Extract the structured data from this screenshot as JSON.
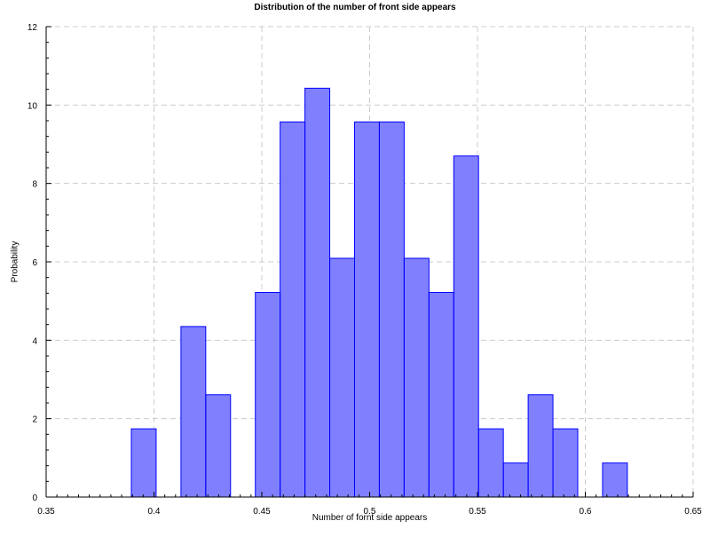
{
  "chart_data": {
    "type": "bar",
    "title": "Distribution of the number of front side appears",
    "xlabel": "Number of fornt side appears",
    "ylabel": "Probability",
    "xlim": [
      0.35,
      0.65
    ],
    "ylim": [
      0,
      12
    ],
    "x_ticks": [
      "0.35",
      "0.4",
      "0.45",
      "0.5",
      "0.55",
      "0.6",
      "0.65"
    ],
    "y_ticks": [
      "0",
      "2",
      "4",
      "6",
      "8",
      "10",
      "12"
    ],
    "grid": true,
    "bin_width": 0.0115,
    "bins": [
      {
        "x": 0.3895,
        "value": 1.74
      },
      {
        "x": 0.4125,
        "value": 4.35
      },
      {
        "x": 0.424,
        "value": 2.61
      },
      {
        "x": 0.447,
        "value": 5.22
      },
      {
        "x": 0.4585,
        "value": 9.57
      },
      {
        "x": 0.47,
        "value": 10.43
      },
      {
        "x": 0.4815,
        "value": 6.09
      },
      {
        "x": 0.493,
        "value": 9.57
      },
      {
        "x": 0.5045,
        "value": 9.57
      },
      {
        "x": 0.516,
        "value": 6.09
      },
      {
        "x": 0.5275,
        "value": 5.22
      },
      {
        "x": 0.539,
        "value": 8.7
      },
      {
        "x": 0.5505,
        "value": 1.74
      },
      {
        "x": 0.562,
        "value": 0.87
      },
      {
        "x": 0.5735,
        "value": 2.61
      },
      {
        "x": 0.585,
        "value": 1.74
      },
      {
        "x": 0.608,
        "value": 0.87
      }
    ],
    "colors": {
      "fill": "#8080ff",
      "edge": "#0000ff",
      "grid": "#cccccc",
      "axis": "#000000"
    }
  }
}
